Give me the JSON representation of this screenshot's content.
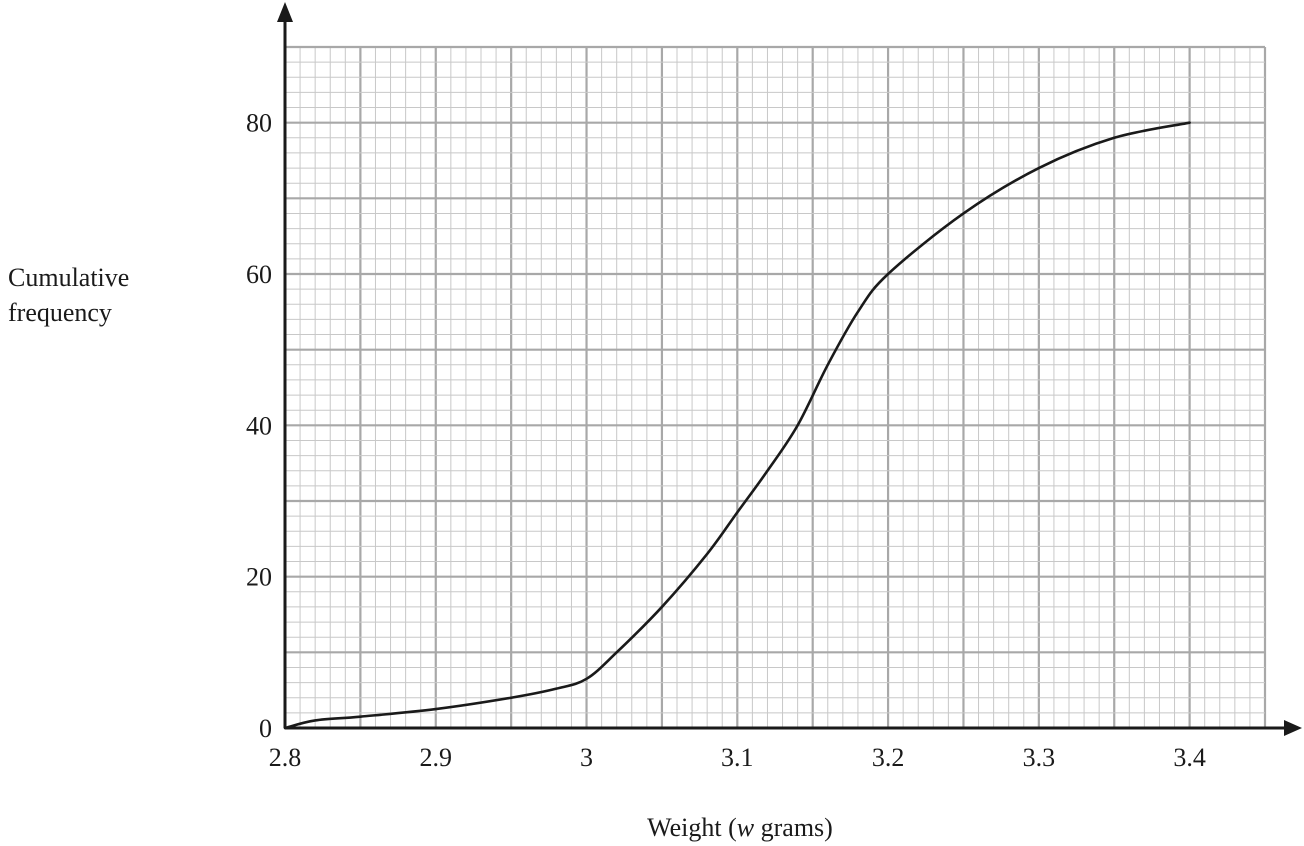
{
  "chart_data": {
    "type": "line",
    "title": "",
    "ylabel_lines": [
      "Cumulative",
      "frequency"
    ],
    "xlabel": {
      "prefix": "Weight (",
      "italic": "w",
      "suffix": " grams)"
    },
    "xlim": [
      2.8,
      3.45
    ],
    "ylim": [
      0,
      90
    ],
    "x_ticks": [
      {
        "value": 2.8,
        "label": "2.8"
      },
      {
        "value": 2.9,
        "label": "2.9"
      },
      {
        "value": 3.0,
        "label": "3"
      },
      {
        "value": 3.1,
        "label": "3.1"
      },
      {
        "value": 3.2,
        "label": "3.2"
      },
      {
        "value": 3.3,
        "label": "3.3"
      },
      {
        "value": 3.4,
        "label": "3.4"
      }
    ],
    "y_ticks": [
      {
        "value": 0,
        "label": "0"
      },
      {
        "value": 20,
        "label": "20"
      },
      {
        "value": 40,
        "label": "40"
      },
      {
        "value": 60,
        "label": "60"
      },
      {
        "value": 80,
        "label": "80"
      }
    ],
    "grid": {
      "minor_x_step": 0.01,
      "minor_y_step": 2,
      "major_x_step": 0.05,
      "major_y_step": 10,
      "visible": true
    },
    "series": [
      {
        "x": [
          2.8,
          2.82,
          2.85,
          2.9,
          2.95,
          2.98,
          3.0,
          3.02,
          3.05,
          3.08,
          3.1,
          3.12,
          3.14,
          3.16,
          3.18,
          3.2,
          3.25,
          3.3,
          3.35,
          3.4
        ],
        "y": [
          0,
          1,
          1.5,
          2.5,
          4,
          5.2,
          6.5,
          10,
          16,
          23,
          28.5,
          34,
          40,
          48,
          55,
          60,
          68,
          74,
          78,
          80
        ]
      }
    ],
    "colors": {
      "line": "#1a1a1a",
      "axis": "#1a1a1a",
      "grid_minor": "#c8c8c8",
      "grid_major": "#a8a8a8"
    }
  }
}
